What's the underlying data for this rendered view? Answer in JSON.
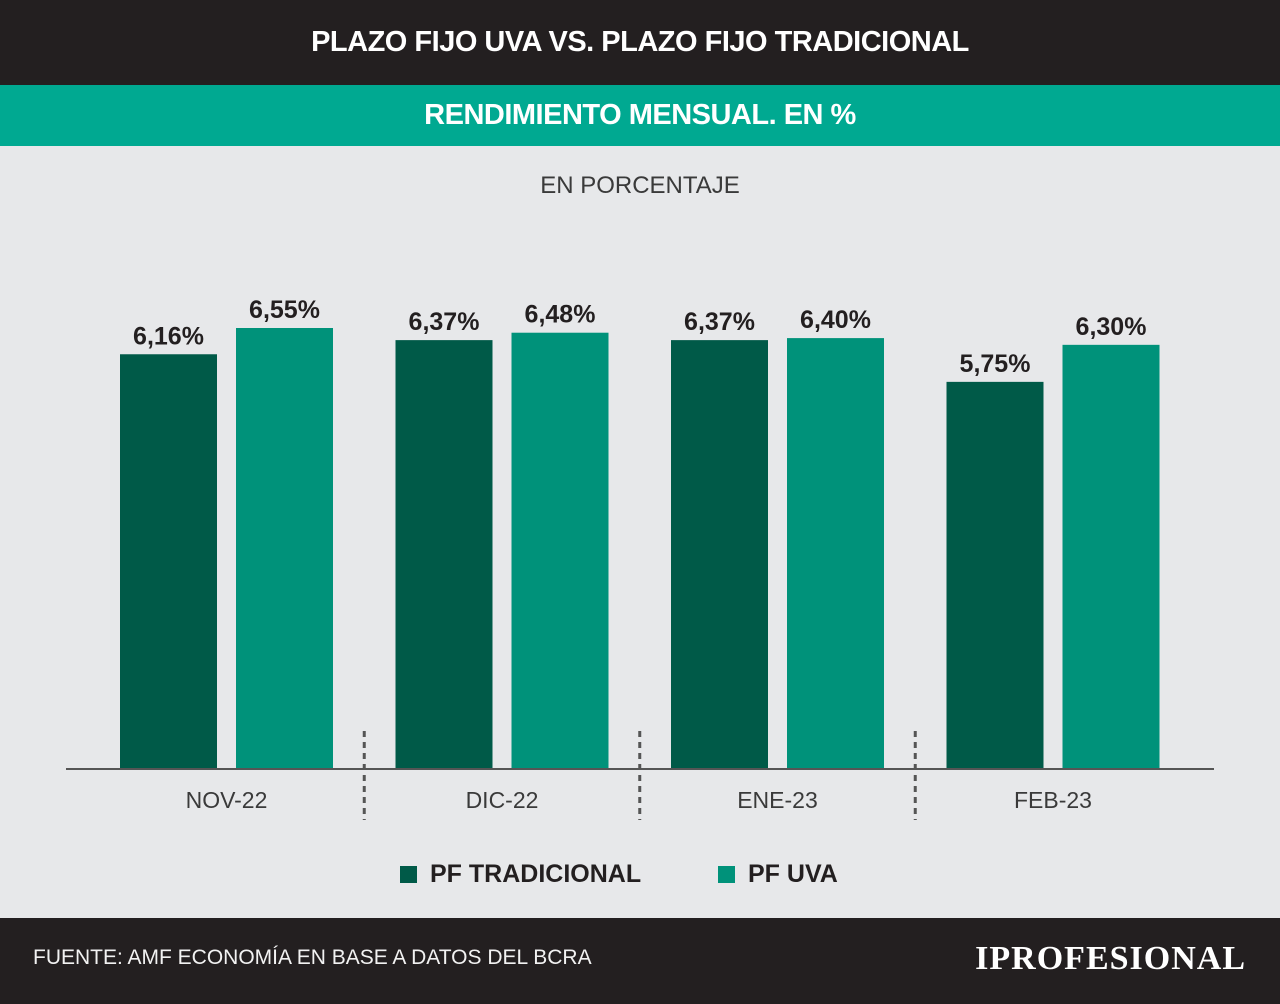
{
  "header": {
    "title": "PLAZO FIJO UVA VS. PLAZO FIJO TRADICIONAL",
    "subtitle": "RENDIMIENTO MENSUAL. EN %"
  },
  "unit_label": "EN PORCENTAJE",
  "colors": {
    "header_bg": "#231f20",
    "subtitle_bg": "#00a991",
    "pf_tradicional": "#005a48",
    "pf_uva": "#00927a",
    "background": "#e7e8ea"
  },
  "chart_data": {
    "type": "bar",
    "title": "PLAZO FIJO UVA VS. PLAZO FIJO TRADICIONAL",
    "subtitle": "RENDIMIENTO MENSUAL. EN %",
    "ylabel": "EN PORCENTAJE",
    "xlabel": "",
    "categories": [
      "NOV-22",
      "DIC-22",
      "ENE-23",
      "FEB-23"
    ],
    "series": [
      {
        "name": "PF TRADICIONAL",
        "values": [
          6.16,
          6.37,
          6.37,
          5.75
        ],
        "labels": [
          "6,16%",
          "6,37%",
          "6,37%",
          "5,75%"
        ],
        "color": "#005a48"
      },
      {
        "name": "PF UVA",
        "values": [
          6.55,
          6.48,
          6.4,
          6.3
        ],
        "labels": [
          "6,55%",
          "6,48%",
          "6,40%",
          "6,30%"
        ],
        "color": "#00927a"
      }
    ],
    "ylim": [
      0,
      7.5
    ],
    "grid": false,
    "legend": "bottom"
  },
  "legend": {
    "items": [
      {
        "label": "PF TRADICIONAL",
        "color": "#005a48"
      },
      {
        "label": "PF UVA",
        "color": "#00927a"
      }
    ]
  },
  "footer": {
    "source": "FUENTE: AMF ECONOMÍA EN BASE A DATOS DEL BCRA",
    "brand": "IPROFESIONAL"
  }
}
